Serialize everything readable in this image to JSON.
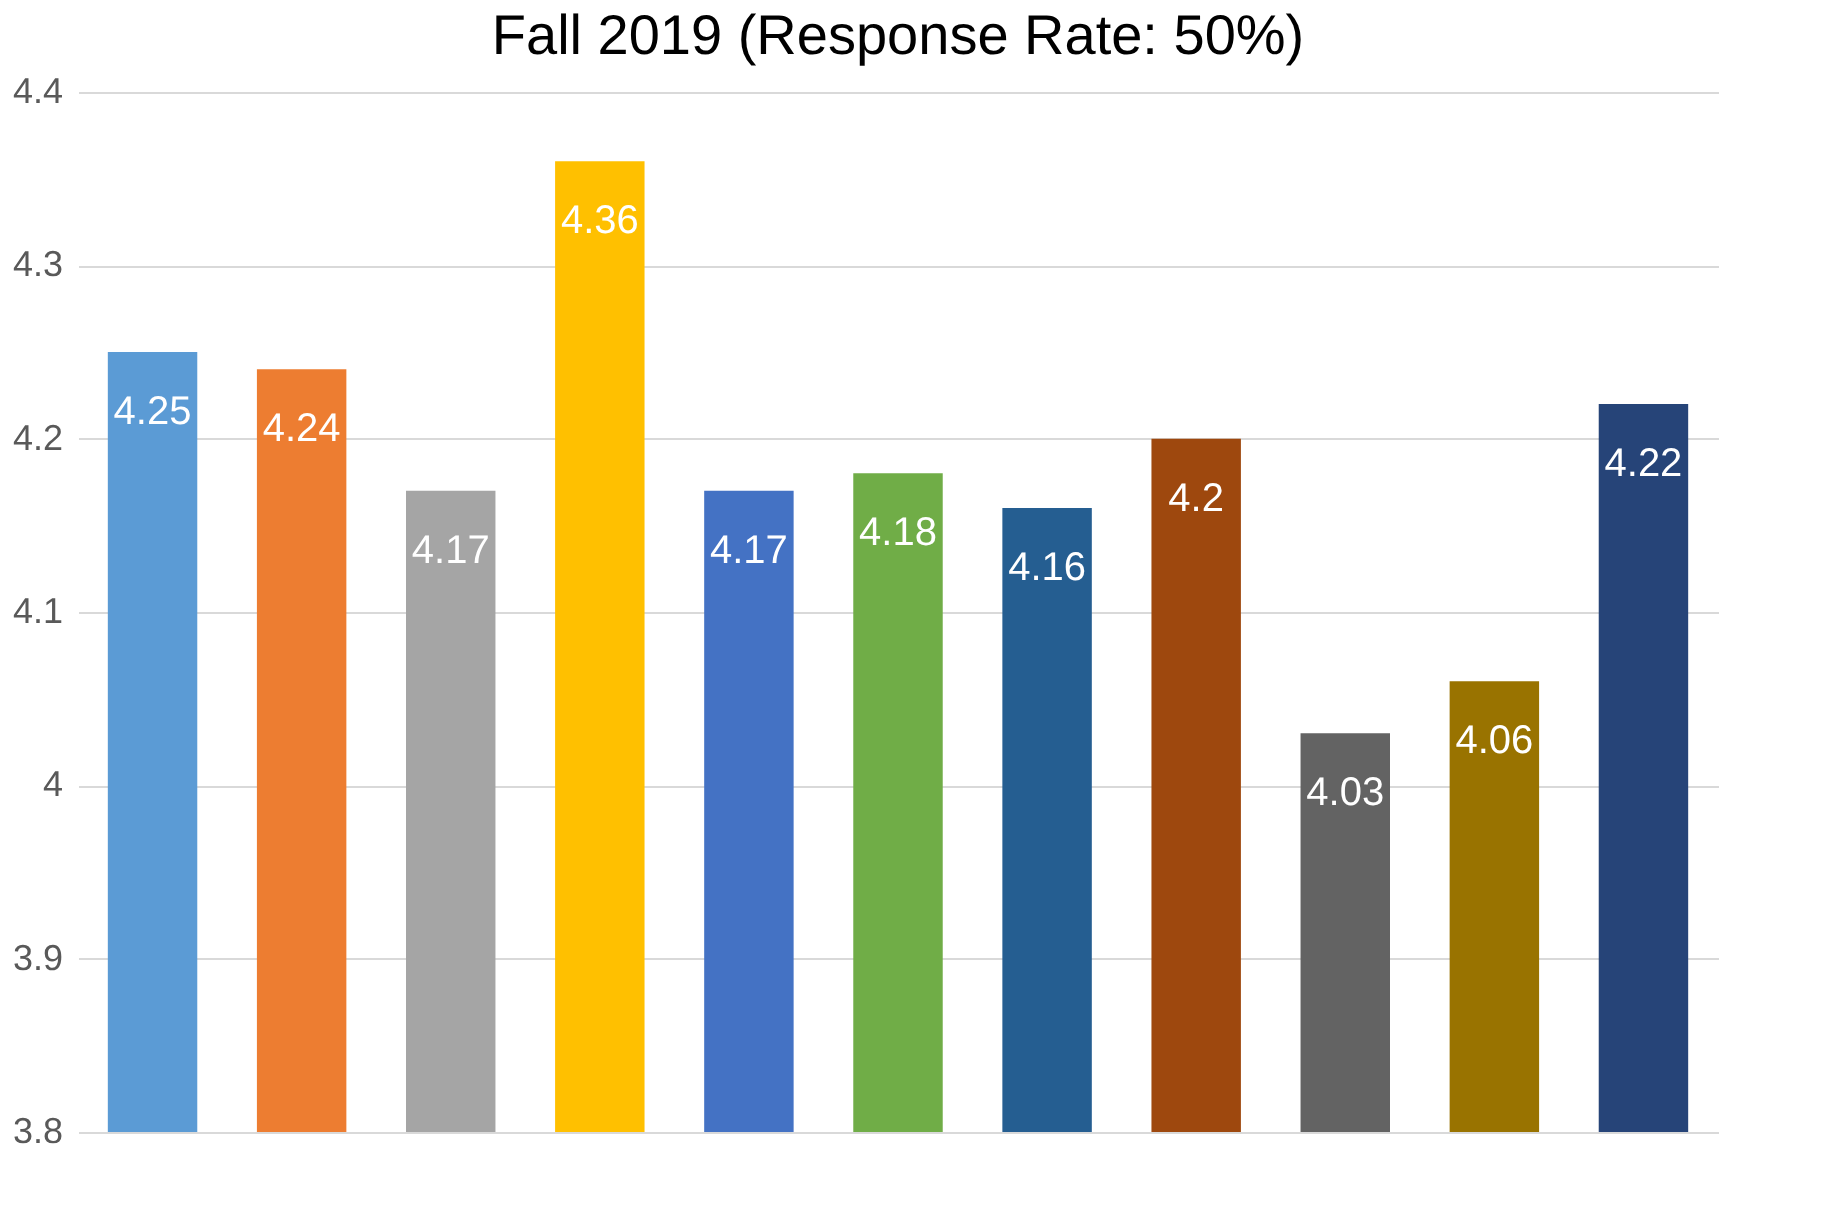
{
  "chart_data": {
    "type": "bar",
    "title": "Fall 2019 (Response Rate: 50%)",
    "categories": [
      null,
      null,
      null,
      null,
      null,
      null,
      null,
      null,
      null,
      null,
      null
    ],
    "values": [
      4.25,
      4.24,
      4.17,
      4.36,
      4.17,
      4.18,
      4.16,
      4.2,
      4.03,
      4.06,
      4.22
    ],
    "colors": [
      "#5b9bd5",
      "#ed7d31",
      "#a5a5a5",
      "#ffc000",
      "#4472c4",
      "#70ad47",
      "#255e91",
      "#9e480e",
      "#636363",
      "#997300",
      "#264478"
    ],
    "ylim": [
      3.8,
      4.4
    ],
    "yticks": [
      3.8,
      3.9,
      4,
      4.1,
      4.2,
      4.3,
      4.4
    ],
    "grid": "y",
    "data_labels": true,
    "tick_labels": "y"
  }
}
